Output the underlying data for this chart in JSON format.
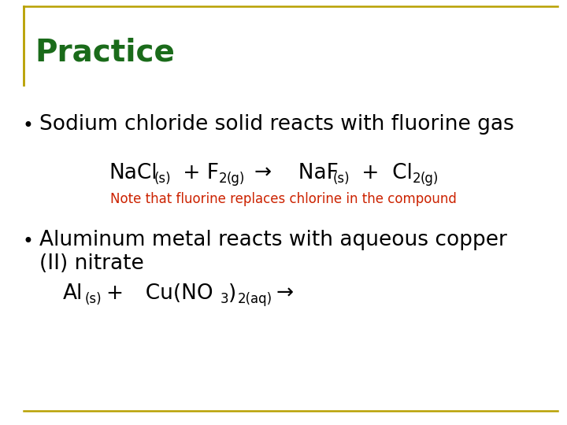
{
  "title": "Practice",
  "title_color": "#1a6b1a",
  "title_fontsize": 28,
  "bg_color": "#ffffff",
  "border_color": "#b8a000",
  "bullet1_text": "Sodium chloride solid reacts with fluorine gas",
  "bullet_fontsize": 19,
  "eq_fontsize": 19,
  "eq_sub_fontsize": 12,
  "note_text": "Note that fluorine replaces chlorine in the compound",
  "note_color": "#cc2200",
  "note_fontsize": 12,
  "bullet2_line1": "Aluminum metal reacts with aqueous copper",
  "bullet2_line2": "(II) nitrate",
  "text_color": "#000000",
  "fig_width": 7.2,
  "fig_height": 5.4,
  "dpi": 100
}
